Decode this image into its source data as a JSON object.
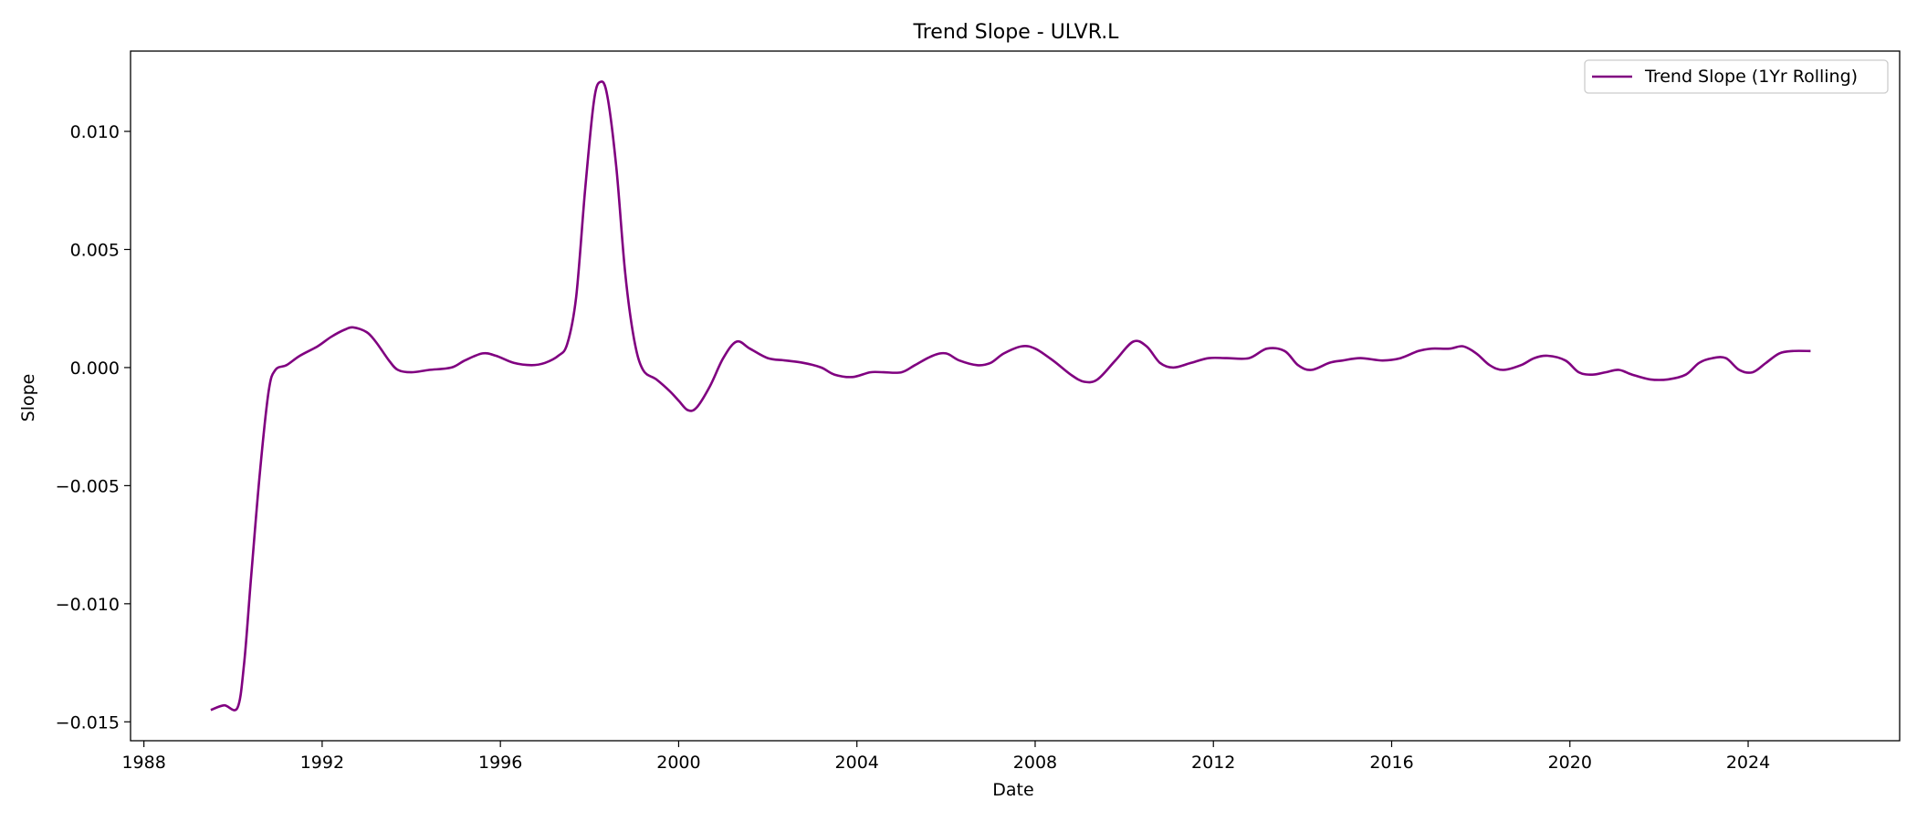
{
  "chart_data": {
    "type": "line",
    "title": "Trend Slope - ULVR.L",
    "xlabel": "Date",
    "ylabel": "Slope",
    "xlim": [
      1987.7,
      2027.4
    ],
    "ylim": [
      -0.0158,
      0.0134
    ],
    "x_ticks": [
      1988,
      1992,
      1996,
      2000,
      2004,
      2008,
      2012,
      2016,
      2020,
      2024
    ],
    "y_ticks": [
      {
        "value": -0.015,
        "label": "−0.015"
      },
      {
        "value": -0.01,
        "label": "−0.010"
      },
      {
        "value": -0.005,
        "label": "−0.005"
      },
      {
        "value": 0.0,
        "label": "0.000"
      },
      {
        "value": 0.005,
        "label": "0.005"
      },
      {
        "value": 0.01,
        "label": "0.010"
      }
    ],
    "grid": false,
    "legend_position": "top-right",
    "series": [
      {
        "name": "Trend Slope (1Yr Rolling)",
        "color": "#800080",
        "x": [
          1989.5,
          1989.8,
          1990.1,
          1990.25,
          1990.4,
          1990.6,
          1990.8,
          1990.95,
          1991.2,
          1991.5,
          1991.9,
          1992.2,
          1992.5,
          1992.7,
          1993.0,
          1993.2,
          1993.5,
          1993.7,
          1994.0,
          1994.4,
          1994.9,
          1995.2,
          1995.6,
          1995.9,
          1996.3,
          1996.7,
          1997.0,
          1997.3,
          1997.5,
          1997.7,
          1997.9,
          1998.1,
          1998.25,
          1998.4,
          1998.6,
          1998.8,
          1999.0,
          1999.2,
          1999.5,
          1999.8,
          2000.0,
          2000.2,
          2000.4,
          2000.7,
          2001.0,
          2001.3,
          2001.6,
          2002.0,
          2002.4,
          2002.8,
          2003.2,
          2003.5,
          2003.9,
          2004.3,
          2004.6,
          2005.0,
          2005.3,
          2005.7,
          2006.0,
          2006.3,
          2006.7,
          2007.0,
          2007.3,
          2007.7,
          2008.0,
          2008.4,
          2008.8,
          2009.1,
          2009.4,
          2009.8,
          2010.2,
          2010.5,
          2010.8,
          2011.1,
          2011.5,
          2011.9,
          2012.3,
          2012.8,
          2013.2,
          2013.6,
          2013.9,
          2014.2,
          2014.6,
          2014.9,
          2015.3,
          2015.8,
          2016.2,
          2016.6,
          2016.9,
          2017.3,
          2017.6,
          2017.9,
          2018.2,
          2018.5,
          2018.9,
          2019.2,
          2019.5,
          2019.9,
          2020.2,
          2020.5,
          2020.8,
          2021.1,
          2021.4,
          2021.8,
          2022.2,
          2022.6,
          2022.9,
          2023.2,
          2023.5,
          2023.8,
          2024.1,
          2024.4,
          2024.7,
          2025.0,
          2025.4
        ],
        "y": [
          -0.0145,
          -0.0143,
          -0.0144,
          -0.0125,
          -0.009,
          -0.0045,
          -0.001,
          -0.0001,
          0.0001,
          0.0005,
          0.0009,
          0.0013,
          0.0016,
          0.0017,
          0.0015,
          0.0011,
          0.0003,
          -0.0001,
          -0.0002,
          -0.0001,
          0.0,
          0.0003,
          0.0006,
          0.0005,
          0.0002,
          0.0001,
          0.0002,
          0.0005,
          0.001,
          0.003,
          0.0075,
          0.0113,
          0.0121,
          0.0115,
          0.0085,
          0.004,
          0.0012,
          -0.0001,
          -0.0005,
          -0.001,
          -0.0014,
          -0.0018,
          -0.0017,
          -0.0008,
          0.0004,
          0.0011,
          0.0008,
          0.0004,
          0.0003,
          0.0002,
          0.0,
          -0.0003,
          -0.0004,
          -0.0002,
          -0.0002,
          -0.0002,
          0.0001,
          0.0005,
          0.0006,
          0.0003,
          0.0001,
          0.0002,
          0.0006,
          0.0009,
          0.0008,
          0.0003,
          -0.0003,
          -0.0006,
          -0.0005,
          0.0003,
          0.0011,
          0.0009,
          0.0002,
          0.0,
          0.0002,
          0.0004,
          0.0004,
          0.0004,
          0.0008,
          0.0007,
          0.0001,
          -0.0001,
          0.0002,
          0.0003,
          0.0004,
          0.0003,
          0.0004,
          0.0007,
          0.0008,
          0.0008,
          0.0009,
          0.0006,
          0.0001,
          -0.0001,
          0.0001,
          0.0004,
          0.0005,
          0.0003,
          -0.0002,
          -0.0003,
          -0.0002,
          -0.0001,
          -0.0003,
          -0.0005,
          -0.0005,
          -0.0003,
          0.0002,
          0.0004,
          0.0004,
          -0.0001,
          -0.0002,
          0.0002,
          0.0006,
          0.0007,
          0.0007
        ]
      }
    ]
  }
}
